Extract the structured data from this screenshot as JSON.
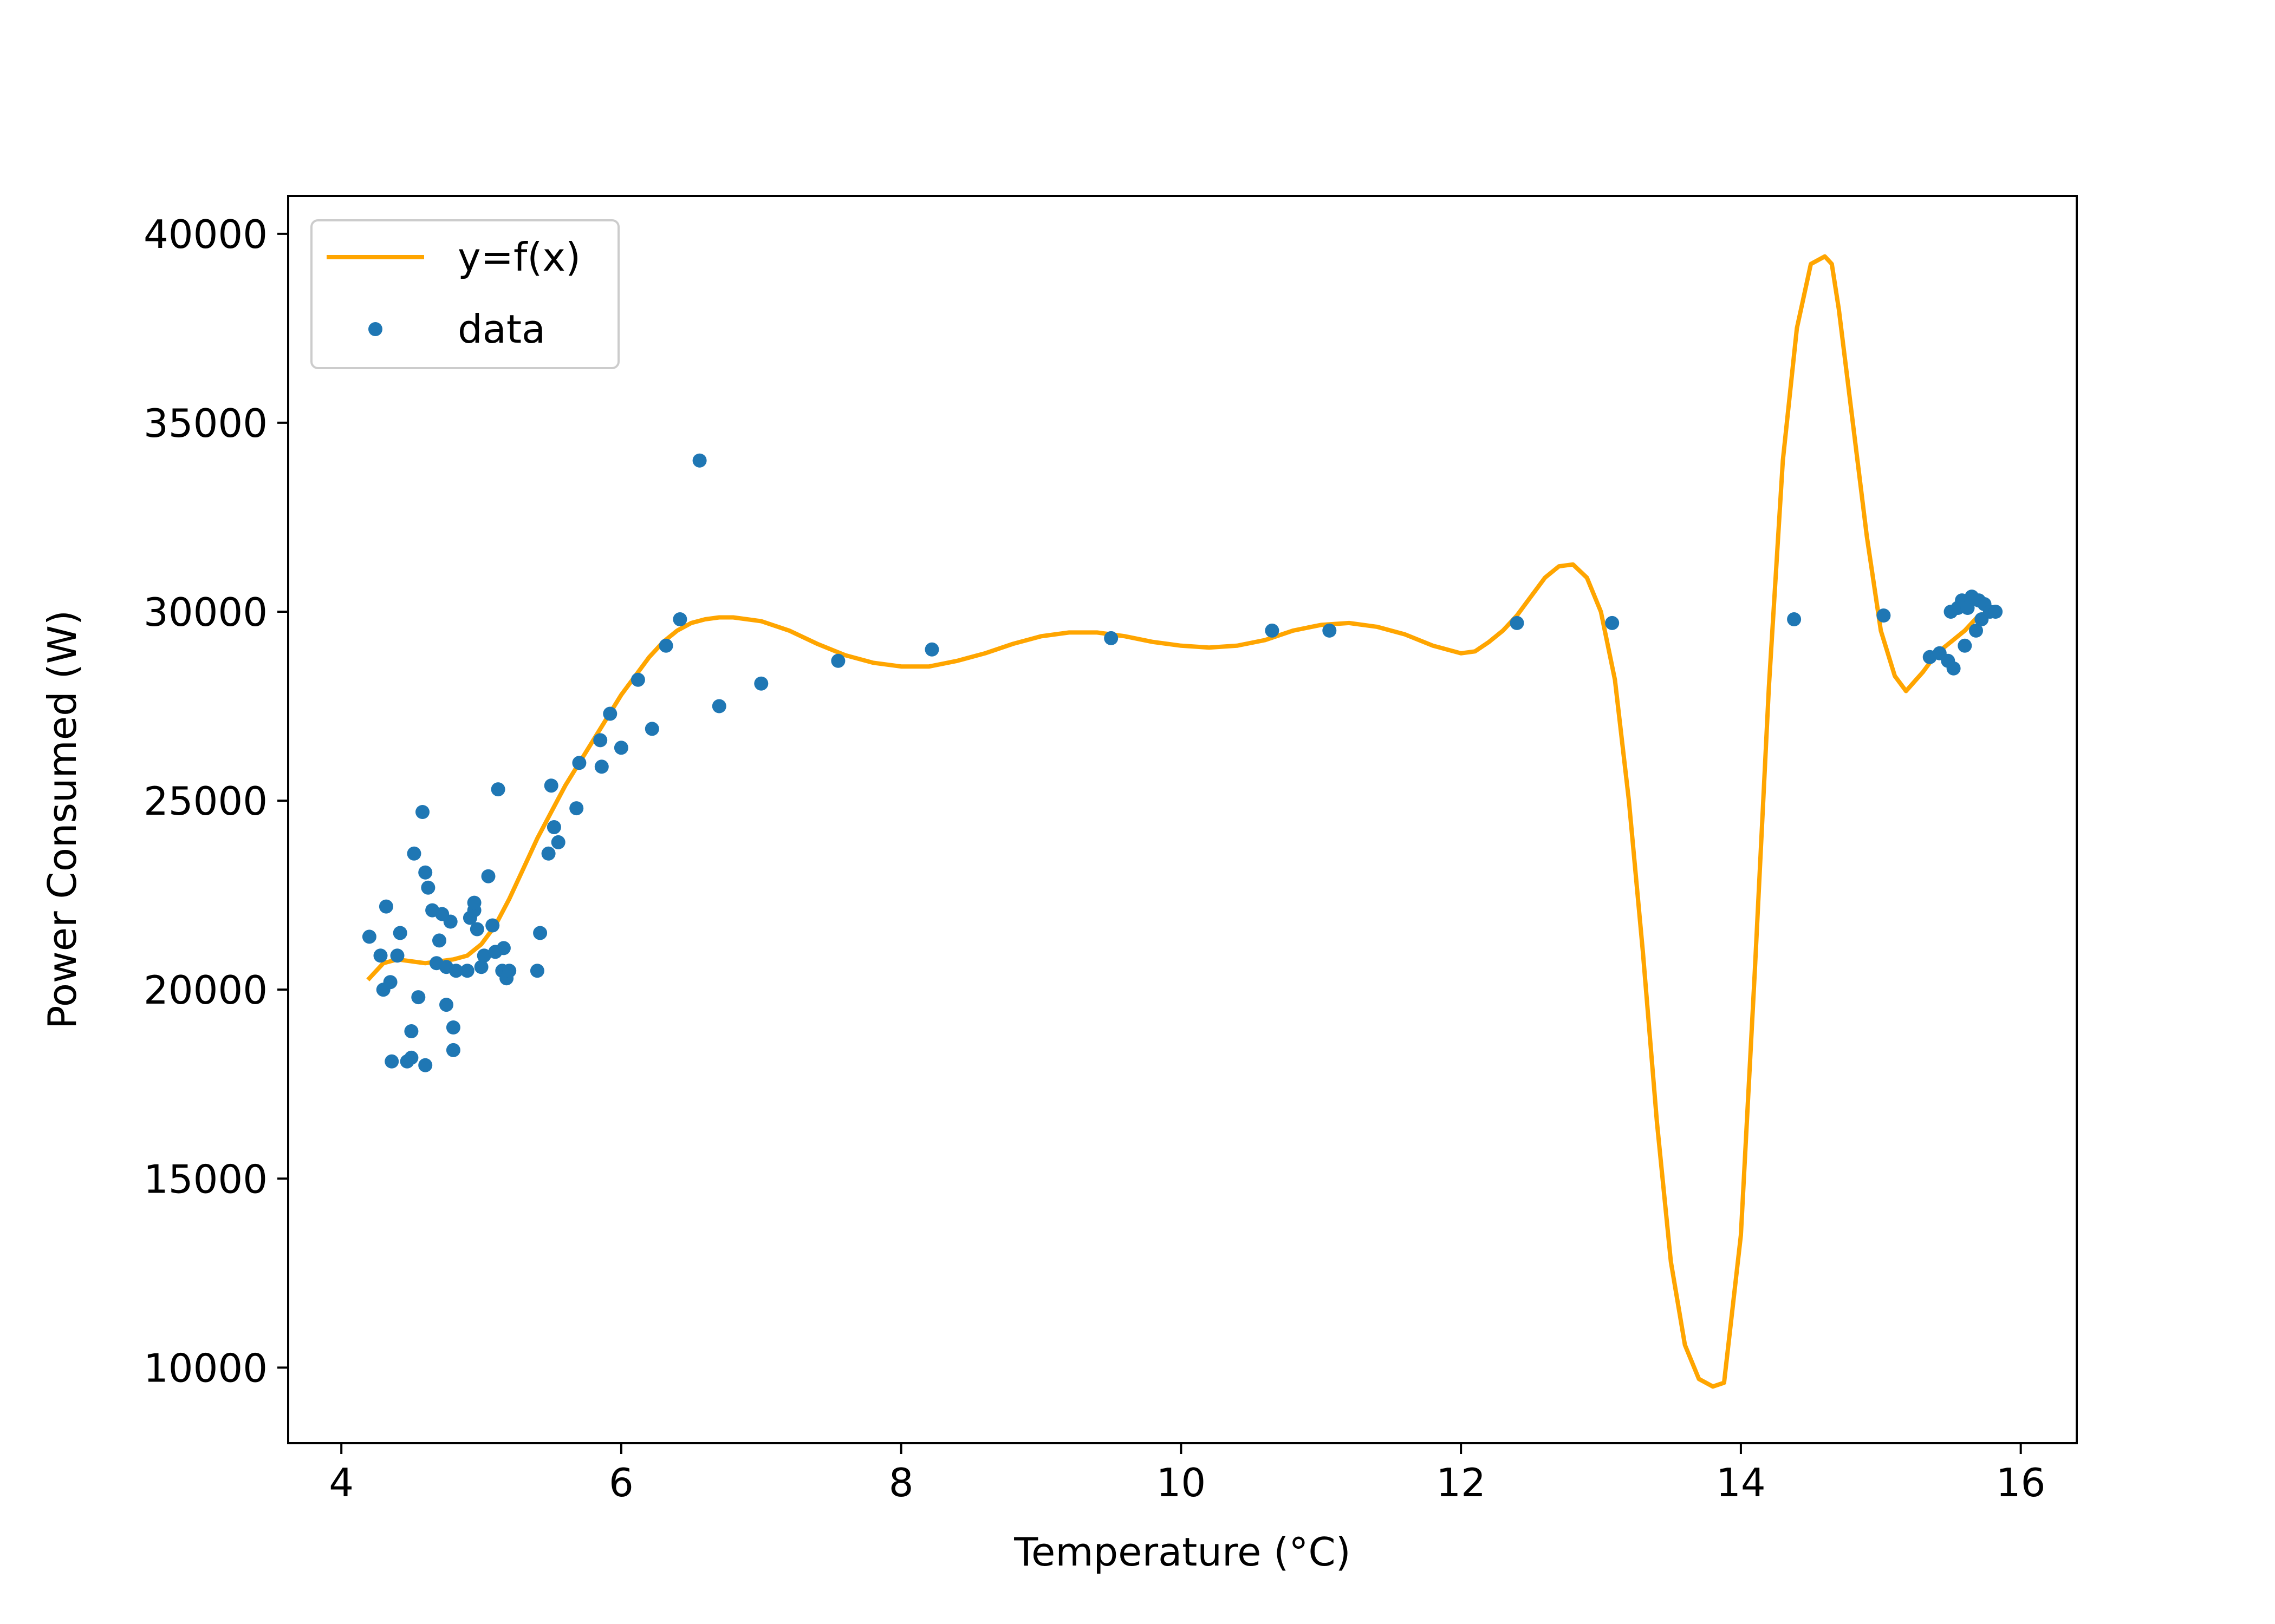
{
  "chart_data": {
    "type": "scatter",
    "title": "",
    "xlabel": "Temperature (°C)",
    "ylabel": "Power Consumed (W)",
    "xlim": [
      3.62,
      16.4
    ],
    "ylim": [
      8000,
      41000
    ],
    "xticks": [
      4,
      6,
      8,
      10,
      12,
      14,
      16
    ],
    "yticks": [
      10000,
      15000,
      20000,
      25000,
      30000,
      35000,
      40000
    ],
    "grid": false,
    "legend_position": "top-left",
    "series": [
      {
        "name": "y=f(x)",
        "kind": "line",
        "color": "#ffa500",
        "x": [
          4.2,
          4.3,
          4.4,
          4.5,
          4.6,
          4.7,
          4.8,
          4.9,
          5.0,
          5.1,
          5.2,
          5.3,
          5.4,
          5.5,
          5.6,
          5.7,
          5.8,
          5.9,
          6.0,
          6.1,
          6.2,
          6.3,
          6.4,
          6.5,
          6.6,
          6.7,
          6.8,
          6.9,
          7.0,
          7.2,
          7.4,
          7.6,
          7.8,
          8.0,
          8.2,
          8.4,
          8.6,
          8.8,
          9.0,
          9.2,
          9.4,
          9.6,
          9.8,
          10.0,
          10.2,
          10.4,
          10.6,
          10.8,
          11.0,
          11.2,
          11.4,
          11.6,
          11.8,
          12.0,
          12.1,
          12.2,
          12.3,
          12.4,
          12.5,
          12.6,
          12.7,
          12.8,
          12.9,
          13.0,
          13.1,
          13.2,
          13.3,
          13.4,
          13.5,
          13.6,
          13.7,
          13.8,
          13.88,
          14.0,
          14.1,
          14.2,
          14.3,
          14.4,
          14.5,
          14.6,
          14.65,
          14.7,
          14.8,
          14.9,
          15.0,
          15.1,
          15.18,
          15.3,
          15.4,
          15.5,
          15.6,
          15.7,
          15.8,
          15.85
        ],
        "y": [
          20300,
          20700,
          20800,
          20750,
          20700,
          20750,
          20800,
          20900,
          21200,
          21700,
          22400,
          23200,
          24000,
          24700,
          25400,
          26000,
          26600,
          27200,
          27800,
          28300,
          28800,
          29200,
          29500,
          29700,
          29800,
          29850,
          29850,
          29800,
          29750,
          29500,
          29150,
          28850,
          28650,
          28550,
          28550,
          28700,
          28900,
          29150,
          29350,
          29450,
          29450,
          29350,
          29200,
          29100,
          29050,
          29100,
          29250,
          29500,
          29650,
          29700,
          29600,
          29400,
          29100,
          28900,
          28950,
          29200,
          29500,
          29900,
          30400,
          30900,
          31200,
          31250,
          30900,
          30000,
          28200,
          25000,
          21000,
          16500,
          12800,
          10600,
          9700,
          9500,
          9600,
          13500,
          20500,
          28000,
          34000,
          37500,
          39200,
          39400,
          39200,
          38000,
          35000,
          32000,
          29500,
          28300,
          27900,
          28400,
          28900,
          29200,
          29500,
          29900,
          30000,
          30000
        ]
      },
      {
        "name": "data",
        "kind": "scatter",
        "color": "#1f77b4",
        "x": [
          4.2,
          4.28,
          4.3,
          4.32,
          4.35,
          4.36,
          4.4,
          4.42,
          4.47,
          4.5,
          4.5,
          4.52,
          4.55,
          4.58,
          4.6,
          4.6,
          4.62,
          4.65,
          4.68,
          4.7,
          4.72,
          4.75,
          4.75,
          4.78,
          4.8,
          4.8,
          4.82,
          4.9,
          4.92,
          4.95,
          4.95,
          4.97,
          5.0,
          5.02,
          5.05,
          5.08,
          5.1,
          5.12,
          5.15,
          5.16,
          5.18,
          5.2,
          5.4,
          5.42,
          5.48,
          5.5,
          5.52,
          5.55,
          5.68,
          5.7,
          5.85,
          5.86,
          5.92,
          6.0,
          6.12,
          6.22,
          6.32,
          6.42,
          6.56,
          6.7,
          7.0,
          7.55,
          8.22,
          9.5,
          10.65,
          11.06,
          12.4,
          13.08,
          14.38,
          15.02,
          15.35,
          15.42,
          15.48,
          15.5,
          15.52,
          15.55,
          15.58,
          15.6,
          15.62,
          15.65,
          15.68,
          15.7,
          15.72,
          15.74,
          15.78,
          15.82
        ],
        "y": [
          21400,
          20900,
          20000,
          22200,
          20200,
          18100,
          20900,
          21500,
          18100,
          18200,
          18900,
          23600,
          19800,
          24700,
          18000,
          23100,
          22700,
          22100,
          20700,
          21300,
          22000,
          20600,
          19600,
          21800,
          18400,
          19000,
          20500,
          20500,
          21900,
          22100,
          22300,
          21600,
          20600,
          20900,
          23000,
          21700,
          21000,
          25300,
          20500,
          21100,
          20300,
          20500,
          20500,
          21500,
          23600,
          25400,
          24300,
          23900,
          24800,
          26000,
          26600,
          25900,
          27300,
          26400,
          28200,
          26900,
          29100,
          29800,
          34000,
          27500,
          28100,
          28700,
          29000,
          29300,
          29500,
          29500,
          29700,
          29700,
          29800,
          29900,
          28800,
          28900,
          28700,
          30000,
          28500,
          30100,
          30300,
          29100,
          30100,
          30400,
          29500,
          30300,
          29800,
          30200,
          30000,
          30000
        ]
      }
    ]
  }
}
